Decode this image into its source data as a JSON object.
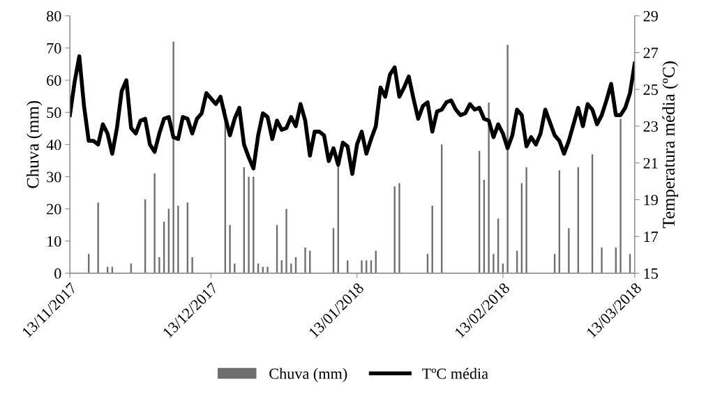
{
  "chart_data": {
    "type": "bar",
    "x": [
      "2017-11-13",
      "2017-11-14",
      "2017-11-15",
      "2017-11-16",
      "2017-11-17",
      "2017-11-18",
      "2017-11-19",
      "2017-11-20",
      "2017-11-21",
      "2017-11-22",
      "2017-11-23",
      "2017-11-24",
      "2017-11-25",
      "2017-11-26",
      "2017-11-27",
      "2017-11-28",
      "2017-11-29",
      "2017-11-30",
      "2017-12-01",
      "2017-12-02",
      "2017-12-03",
      "2017-12-04",
      "2017-12-05",
      "2017-12-06",
      "2017-12-07",
      "2017-12-08",
      "2017-12-09",
      "2017-12-10",
      "2017-12-11",
      "2017-12-12",
      "2017-12-13",
      "2017-12-14",
      "2017-12-15",
      "2017-12-16",
      "2017-12-17",
      "2017-12-18",
      "2017-12-19",
      "2017-12-20",
      "2017-12-21",
      "2017-12-22",
      "2017-12-23",
      "2017-12-24",
      "2017-12-25",
      "2017-12-26",
      "2017-12-27",
      "2017-12-28",
      "2017-12-29",
      "2017-12-30",
      "2017-12-31",
      "2018-01-01",
      "2018-01-02",
      "2018-01-03",
      "2018-01-04",
      "2018-01-05",
      "2018-01-06",
      "2018-01-07",
      "2018-01-08",
      "2018-01-09",
      "2018-01-10",
      "2018-01-11",
      "2018-01-12",
      "2018-01-13",
      "2018-01-14",
      "2018-01-15",
      "2018-01-16",
      "2018-01-17",
      "2018-01-18",
      "2018-01-19",
      "2018-01-20",
      "2018-01-21",
      "2018-01-22",
      "2018-01-23",
      "2018-01-24",
      "2018-01-25",
      "2018-01-26",
      "2018-01-27",
      "2018-01-28",
      "2018-01-29",
      "2018-01-30",
      "2018-01-31",
      "2018-02-01",
      "2018-02-02",
      "2018-02-03",
      "2018-02-04",
      "2018-02-05",
      "2018-02-06",
      "2018-02-07",
      "2018-02-08",
      "2018-02-09",
      "2018-02-10",
      "2018-02-11",
      "2018-02-12",
      "2018-02-13",
      "2018-02-14",
      "2018-02-15",
      "2018-02-16",
      "2018-02-17",
      "2018-02-18",
      "2018-02-19",
      "2018-02-20",
      "2018-02-21",
      "2018-02-22",
      "2018-02-23",
      "2018-02-24",
      "2018-02-25",
      "2018-02-26",
      "2018-02-27",
      "2018-02-28",
      "2018-03-01",
      "2018-03-02",
      "2018-03-03",
      "2018-03-04",
      "2018-03-05",
      "2018-03-06",
      "2018-03-07",
      "2018-03-08",
      "2018-03-09",
      "2018-03-10",
      "2018-03-11",
      "2018-03-12",
      "2018-03-13"
    ],
    "series": [
      {
        "name": "Chuva (mm)",
        "color": "#6e6e6e",
        "x": [
          "2017-11-17",
          "2017-11-19",
          "2017-11-21",
          "2017-11-22",
          "2017-11-26",
          "2017-11-29",
          "2017-12-01",
          "2017-12-02",
          "2017-12-03",
          "2017-12-04",
          "2017-12-05",
          "2017-12-06",
          "2017-12-08",
          "2017-12-09",
          "2017-12-16",
          "2017-12-17",
          "2017-12-18",
          "2017-12-20",
          "2017-12-21",
          "2017-12-22",
          "2017-12-23",
          "2017-12-24",
          "2017-12-25",
          "2017-12-27",
          "2017-12-28",
          "2017-12-29",
          "2017-12-30",
          "2017-12-31",
          "2018-01-02",
          "2018-01-03",
          "2018-01-08",
          "2018-01-09",
          "2018-01-11",
          "2018-01-14",
          "2018-01-15",
          "2018-01-16",
          "2018-01-17",
          "2018-01-21",
          "2018-01-22",
          "2018-01-28",
          "2018-01-29",
          "2018-01-31",
          "2018-02-08",
          "2018-02-09",
          "2018-02-10",
          "2018-02-11",
          "2018-02-12",
          "2018-02-13",
          "2018-02-14",
          "2018-02-16",
          "2018-02-17",
          "2018-02-18",
          "2018-02-24",
          "2018-02-25",
          "2018-02-27",
          "2018-03-01",
          "2018-03-04",
          "2018-03-06",
          "2018-03-09",
          "2018-03-10",
          "2018-03-12"
        ],
        "values": [
          6,
          22,
          2,
          2,
          3,
          23,
          31,
          5,
          16,
          20,
          72,
          21,
          22,
          5,
          51,
          15,
          3,
          33,
          30,
          30,
          3,
          2,
          2,
          15,
          4,
          20,
          3,
          5,
          8,
          7,
          14,
          34,
          4,
          4,
          4,
          4,
          7,
          27,
          28,
          6,
          21,
          40,
          38,
          29,
          53,
          6,
          17,
          3,
          71,
          7,
          28,
          33,
          6,
          32,
          14,
          33,
          37,
          8,
          8,
          48,
          6
        ]
      },
      {
        "name": "TºC média",
        "type": "line",
        "axis": "y2",
        "color": "#000000",
        "values": [
          23.6,
          25.4,
          26.8,
          24.1,
          22.2,
          22.2,
          22.0,
          23.1,
          22.6,
          21.5,
          22.9,
          24.9,
          25.5,
          22.9,
          22.6,
          23.3,
          23.4,
          22.0,
          21.6,
          22.6,
          23.4,
          23.5,
          22.4,
          22.3,
          23.5,
          23.4,
          22.6,
          23.4,
          23.7,
          24.8,
          24.5,
          24.2,
          24.6,
          23.5,
          22.5,
          23.4,
          24.0,
          22.0,
          21.3,
          20.7,
          22.5,
          23.7,
          23.5,
          22.3,
          23.3,
          22.8,
          22.9,
          23.5,
          23.0,
          24.2,
          23.3,
          21.4,
          22.7,
          22.7,
          22.5,
          21.1,
          21.8,
          20.9,
          22.1,
          21.9,
          20.4,
          22.0,
          22.7,
          21.5,
          22.3,
          23.0,
          25.1,
          24.6,
          25.8,
          26.2,
          24.6,
          25.1,
          25.7,
          24.5,
          23.4,
          24.1,
          24.3,
          22.7,
          23.8,
          23.9,
          24.3,
          24.4,
          23.9,
          23.6,
          23.7,
          24.2,
          23.9,
          24.0,
          23.4,
          23.3,
          22.4,
          23.1,
          22.6,
          21.8,
          22.5,
          23.9,
          23.6,
          21.9,
          22.4,
          22.0,
          22.6,
          23.9,
          23.2,
          22.5,
          22.2,
          21.5,
          22.2,
          23.1,
          24.0,
          23.0,
          24.2,
          23.9,
          23.1,
          23.6,
          24.4,
          25.3,
          23.6,
          23.6,
          24.0,
          24.8,
          26.4
        ]
      }
    ],
    "ylabel": "Chuva (mm)",
    "y2label": "Temperatura média (ºC)",
    "xlim": [
      "2017-11-13",
      "2018-03-13"
    ],
    "xticks": [
      {
        "value": "2017-11-13",
        "label": "13/11/2017"
      },
      {
        "value": "2017-12-13",
        "label": "13/12/2017"
      },
      {
        "value": "2018-01-13",
        "label": "13/01/2018"
      },
      {
        "value": "2018-02-13",
        "label": "13/02/2018"
      },
      {
        "value": "2018-03-13",
        "label": "13/03/2018"
      }
    ],
    "ylim": [
      0,
      80
    ],
    "yticks": [
      0,
      10,
      20,
      30,
      40,
      50,
      60,
      70,
      80
    ],
    "y2lim": [
      15,
      29
    ],
    "y2ticks": [
      15,
      17,
      19,
      21,
      23,
      25,
      27,
      29
    ],
    "legend": "bottom",
    "line_style": "solid"
  }
}
